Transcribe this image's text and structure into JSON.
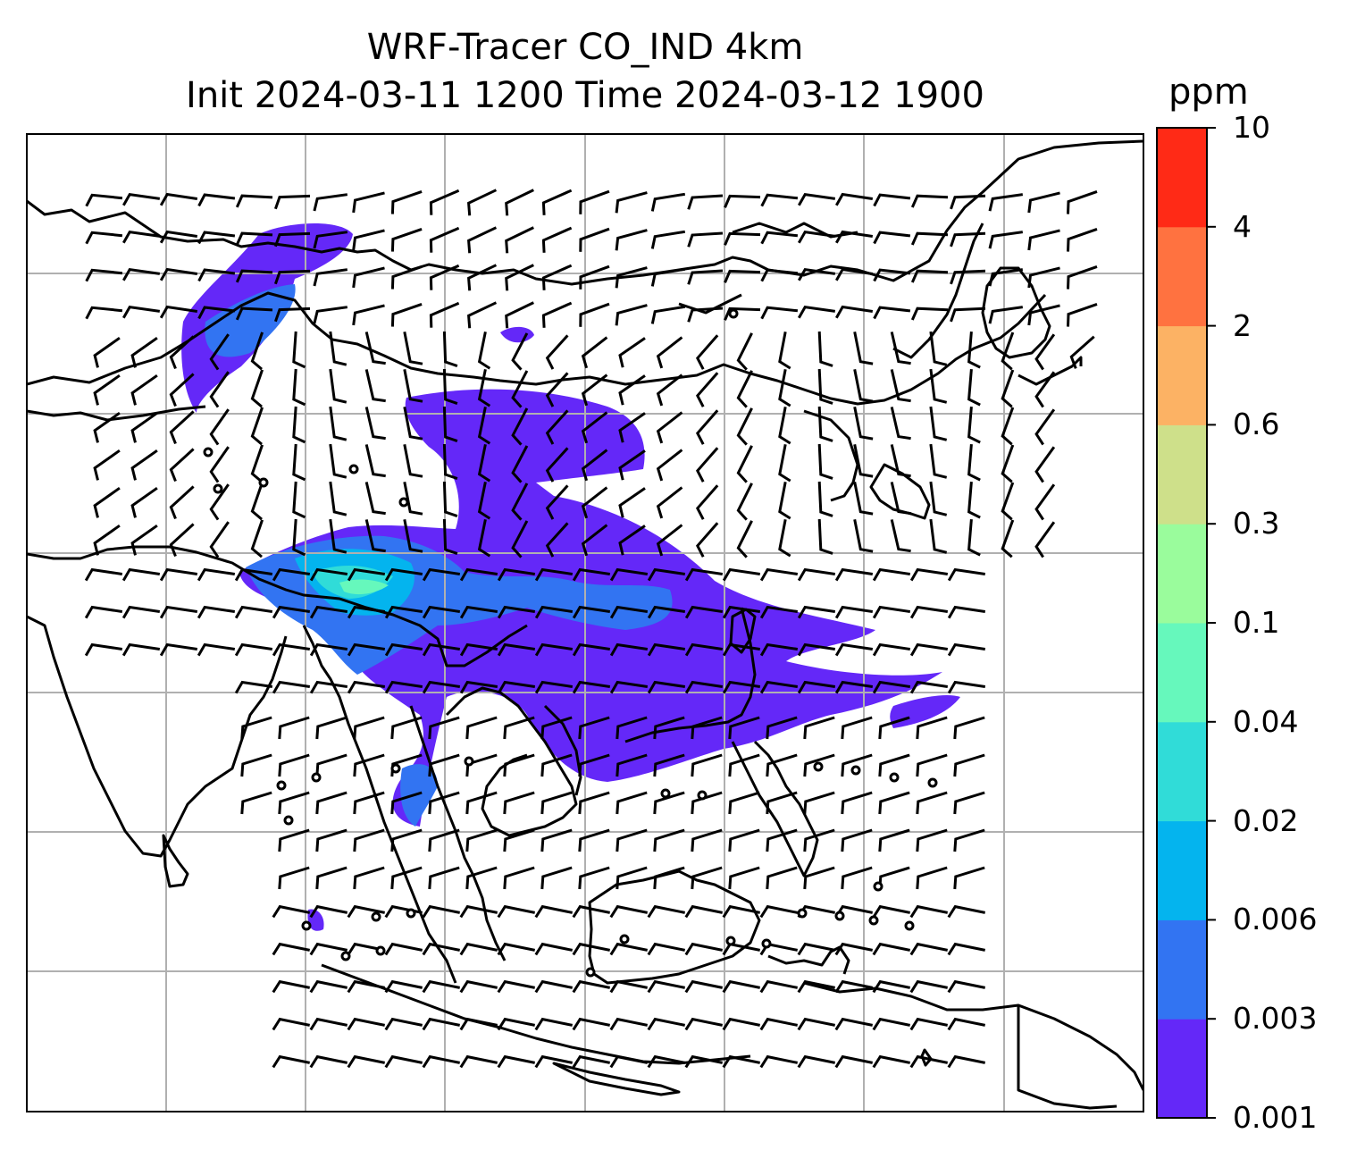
{
  "title": {
    "line1": "WRF-Tracer CO_IND 4km",
    "line2": "Init 2024-03-11 1200 Time 2024-03-12 1900"
  },
  "colorbar": {
    "unit": "ppm",
    "levels": [
      "0.001",
      "0.003",
      "0.006",
      "0.02",
      "0.04",
      "0.1",
      "0.3",
      "0.6",
      "2",
      "4",
      "10"
    ],
    "colors": [
      "#6428f8",
      "#3274f2",
      "#04b4ee",
      "#30dcd8",
      "#66f8bc",
      "#9afc9c",
      "#cee08a",
      "#fcb264",
      "#ff7240",
      "#ff2a16"
    ]
  },
  "map": {
    "frame_color": "#000000",
    "gridline_color": "#b0b0b0",
    "coastline_color": "#000000",
    "wind_barb_color": "#000000"
  }
}
